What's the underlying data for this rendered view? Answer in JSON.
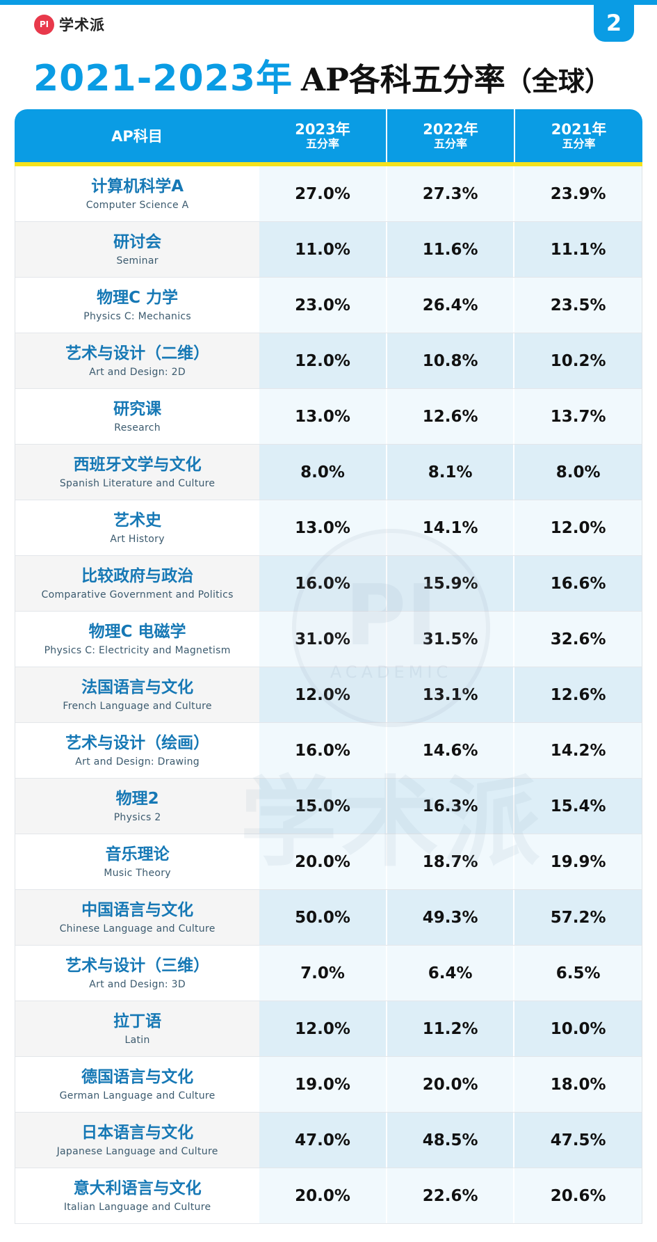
{
  "brand": {
    "logo_text": "PI",
    "name": "学术派"
  },
  "page_number": "2",
  "title": {
    "years": "2021-2023年",
    "main": "AP各科五分率",
    "region": "（全球）"
  },
  "watermark": {
    "logo": "PI",
    "text": "ACADEMIC",
    "brand": "学术派"
  },
  "table": {
    "header": {
      "subject": "AP科目",
      "columns": [
        {
          "year": "2023年",
          "label": "五分率"
        },
        {
          "year": "2022年",
          "label": "五分率"
        },
        {
          "year": "2021年",
          "label": "五分率"
        }
      ]
    },
    "rows": [
      {
        "cn": "计算机科学A",
        "en": "Computer Science A",
        "v2023": "27.0%",
        "v2022": "27.3%",
        "v2021": "23.9%"
      },
      {
        "cn": "研讨会",
        "en": "Seminar",
        "v2023": "11.0%",
        "v2022": "11.6%",
        "v2021": "11.1%"
      },
      {
        "cn": "物理C 力学",
        "en": "Physics C: Mechanics",
        "v2023": "23.0%",
        "v2022": "26.4%",
        "v2021": "23.5%"
      },
      {
        "cn": "艺术与设计（二维）",
        "en": "Art and Design: 2D",
        "v2023": "12.0%",
        "v2022": "10.8%",
        "v2021": "10.2%"
      },
      {
        "cn": "研究课",
        "en": "Research",
        "v2023": "13.0%",
        "v2022": "12.6%",
        "v2021": "13.7%"
      },
      {
        "cn": "西班牙文学与文化",
        "en": "Spanish Literature and Culture",
        "v2023": "8.0%",
        "v2022": "8.1%",
        "v2021": "8.0%"
      },
      {
        "cn": "艺术史",
        "en": "Art History",
        "v2023": "13.0%",
        "v2022": "14.1%",
        "v2021": "12.0%"
      },
      {
        "cn": "比较政府与政治",
        "en": "Comparative Government and Politics",
        "v2023": "16.0%",
        "v2022": "15.9%",
        "v2021": "16.6%"
      },
      {
        "cn": "物理C 电磁学",
        "en": "Physics C: Electricity and Magnetism",
        "v2023": "31.0%",
        "v2022": "31.5%",
        "v2021": "32.6%"
      },
      {
        "cn": "法国语言与文化",
        "en": "French Language and Culture",
        "v2023": "12.0%",
        "v2022": "13.1%",
        "v2021": "12.6%"
      },
      {
        "cn": "艺术与设计（绘画）",
        "en": "Art and Design: Drawing",
        "v2023": "16.0%",
        "v2022": "14.6%",
        "v2021": "14.2%"
      },
      {
        "cn": "物理2",
        "en": "Physics 2",
        "v2023": "15.0%",
        "v2022": "16.3%",
        "v2021": "15.4%"
      },
      {
        "cn": "音乐理论",
        "en": "Music Theory",
        "v2023": "20.0%",
        "v2022": "18.7%",
        "v2021": "19.9%"
      },
      {
        "cn": "中国语言与文化",
        "en": "Chinese Language and Culture",
        "v2023": "50.0%",
        "v2022": "49.3%",
        "v2021": "57.2%"
      },
      {
        "cn": "艺术与设计（三维）",
        "en": "Art and Design: 3D",
        "v2023": "7.0%",
        "v2022": "6.4%",
        "v2021": "6.5%"
      },
      {
        "cn": "拉丁语",
        "en": "Latin",
        "v2023": "12.0%",
        "v2022": "11.2%",
        "v2021": "10.0%"
      },
      {
        "cn": "德国语言与文化",
        "en": "German Language and Culture",
        "v2023": "19.0%",
        "v2022": "20.0%",
        "v2021": "18.0%"
      },
      {
        "cn": "日本语言与文化",
        "en": "Japanese Language and Culture",
        "v2023": "47.0%",
        "v2022": "48.5%",
        "v2021": "47.5%"
      },
      {
        "cn": "意大利语言与文化",
        "en": "Italian Language and Culture",
        "v2023": "20.0%",
        "v2022": "22.6%",
        "v2021": "20.6%"
      }
    ]
  }
}
